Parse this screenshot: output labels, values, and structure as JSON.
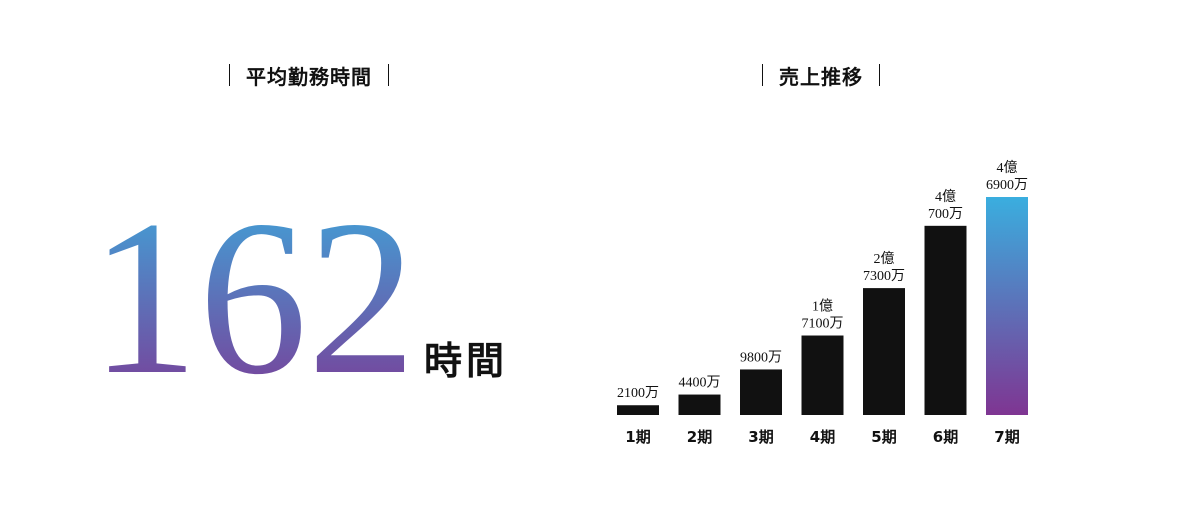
{
  "left_panel": {
    "heading": "平均勤務時間",
    "value": "162",
    "unit": "時間"
  },
  "right_panel": {
    "heading": "売上推移"
  },
  "colors": {
    "bar": "#111111",
    "accent_top": "#3aaedf",
    "accent_bottom": "#7f3592"
  },
  "chart_data": {
    "type": "bar",
    "title": "売上推移",
    "categories": [
      "1期",
      "2期",
      "3期",
      "4期",
      "5期",
      "6期",
      "7期"
    ],
    "values": [
      21000000,
      44000000,
      98000000,
      171000000,
      273000000,
      407000000,
      469000000
    ],
    "data_labels": [
      [
        "2100万"
      ],
      [
        "4400万"
      ],
      [
        "9800万"
      ],
      [
        "1億",
        "7100万"
      ],
      [
        "2億",
        "7300万"
      ],
      [
        "4億",
        "700万"
      ],
      [
        "4億",
        "6900万"
      ]
    ],
    "highlight_index": 6,
    "ylim": [
      0,
      469000000
    ],
    "grid": false,
    "legend": false
  }
}
